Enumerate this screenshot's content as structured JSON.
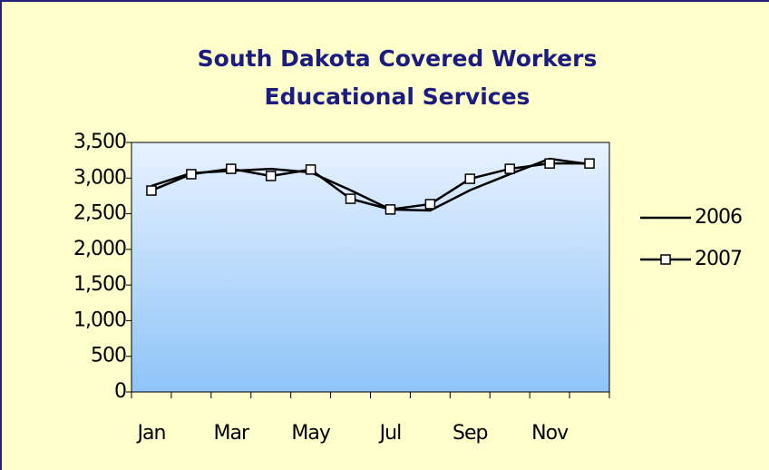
{
  "chart_data": {
    "type": "line",
    "title": "South Dakota Covered Workers",
    "subtitle": "Educational Services",
    "categories": [
      "Jan",
      null,
      "Mar",
      null,
      "May",
      null,
      "Jul",
      null,
      "Sep",
      null,
      "Nov",
      null
    ],
    "series": [
      {
        "name": "2006",
        "color": "#000000",
        "marker": "none",
        "values": [
          2890,
          3070,
          3100,
          3130,
          3080,
          2830,
          2560,
          2545,
          2830,
          3055,
          3270,
          3195
        ]
      },
      {
        "name": "2007",
        "color": "#000000",
        "marker": "square",
        "values": [
          2825,
          3055,
          3130,
          3030,
          3120,
          2710,
          2560,
          2635,
          2990,
          3130,
          3205,
          3205
        ]
      }
    ],
    "ylim": [
      0,
      3500
    ],
    "yticks": [
      0,
      500,
      {
        "value": 1000,
        "label": "1,000"
      },
      {
        "value": 1500,
        "label": "1,500"
      },
      {
        "value": 2000,
        "label": "2,000"
      },
      {
        "value": 2500,
        "label": "2,500"
      },
      {
        "value": 3000,
        "label": "3,000"
      },
      {
        "value": 3500,
        "label": "3,500"
      }
    ],
    "grid": false,
    "legend": "right"
  }
}
